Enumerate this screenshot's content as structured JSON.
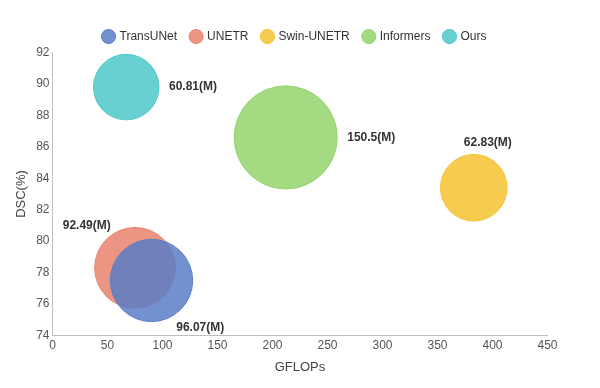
{
  "chart_data": {
    "type": "bubble",
    "x_label": "GFLOPs",
    "y_label": "DSC(%)",
    "xlim": [
      0,
      450
    ],
    "xticks": [
      0,
      50,
      100,
      150,
      200,
      250,
      300,
      350,
      400,
      450
    ],
    "ylim": [
      74,
      92
    ],
    "yticks": [
      74,
      76,
      78,
      80,
      82,
      84,
      86,
      88,
      90,
      92
    ],
    "grid": false,
    "legend": "top",
    "data_labels": true,
    "series": [
      {
        "name": "TransUNet",
        "color": "#5a7ec6",
        "x": [
          90
        ],
        "values": [
          77.5
        ],
        "sizes": [
          96.07
        ],
        "size_labels": [
          "96.07(M)"
        ]
      },
      {
        "name": "UNETR",
        "color": "#e9836c",
        "x": [
          75
        ],
        "values": [
          78.3
        ],
        "sizes": [
          92.49
        ],
        "size_labels": [
          "92.49(M)"
        ]
      },
      {
        "name": "Swin-UNETR",
        "color": "#f3c330",
        "x": [
          383
        ],
        "values": [
          83.4
        ],
        "sizes": [
          62.83
        ],
        "size_labels": [
          "62.83(M)"
        ]
      },
      {
        "name": "Informers",
        "color": "#93d36c",
        "x": [
          212
        ],
        "values": [
          86.6
        ],
        "sizes": [
          150.5
        ],
        "size_labels": [
          "150.5(M)"
        ]
      },
      {
        "name": "Ours",
        "color": "#4ec8c8",
        "x": [
          67
        ],
        "values": [
          89.8
        ],
        "sizes": [
          60.81
        ],
        "size_labels": [
          "60.81(M)"
        ]
      }
    ]
  }
}
